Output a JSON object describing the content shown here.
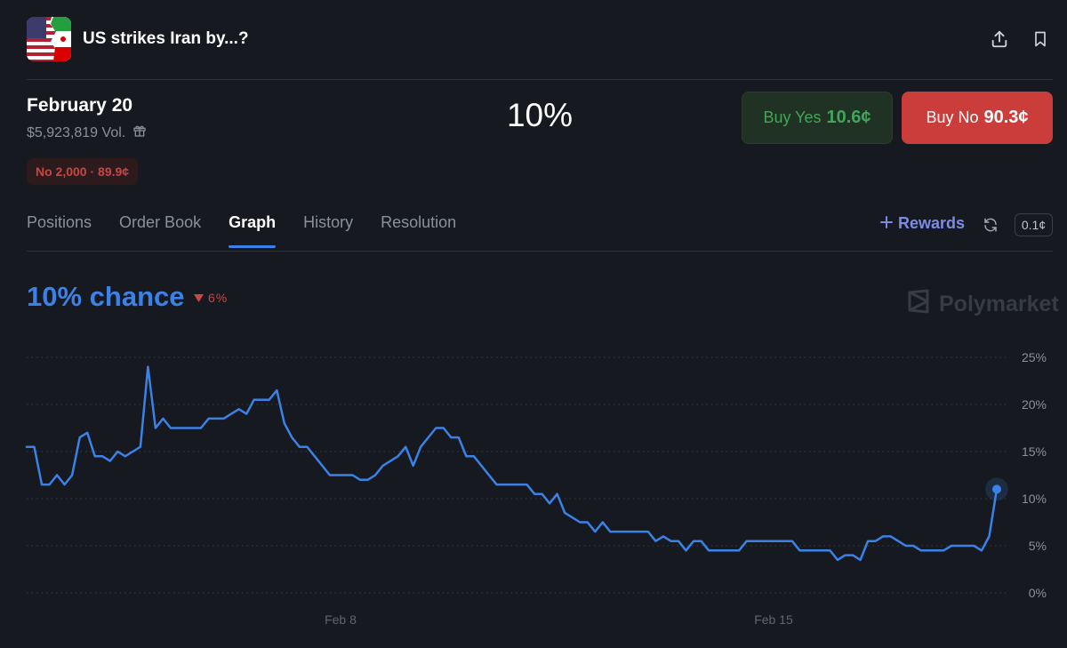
{
  "market": {
    "title": "US strikes Iran by...?",
    "date_option": "February 20",
    "volume": "$5,923,819 Vol.",
    "position_badge": "No 2,000 · 89.9¢",
    "center_percent": "10%"
  },
  "actions": {
    "buy_yes_label": "Buy Yes",
    "buy_yes_price": "10.6¢",
    "buy_no_label": "Buy No",
    "buy_no_price": "90.3¢"
  },
  "header_icons": [
    "share-icon",
    "bookmark-icon"
  ],
  "tabs": [
    "Positions",
    "Order Book",
    "Graph",
    "History",
    "Resolution"
  ],
  "active_tab": "Graph",
  "toolbar": {
    "rewards_label": "Rewards",
    "tick_size": "0.1¢"
  },
  "graph_header": {
    "chance": "10% chance",
    "change": "6%",
    "brand": "Polymarket"
  },
  "colors": {
    "background": "#16191f",
    "accent_blue": "#3b82e8",
    "yes_green": "#42a55a",
    "no_red": "#cb3d3b",
    "rewards_purple": "#7d8be8"
  },
  "chart_data": {
    "type": "line",
    "x_tick_labels": [
      "Feb 8",
      "Feb 15"
    ],
    "y_tick_labels": [
      "25%",
      "20%",
      "15%",
      "10%",
      "5%",
      "0%"
    ],
    "ylim": [
      0,
      25
    ],
    "grid": true,
    "series": [
      {
        "values": [
          15.5,
          15.5,
          11.5,
          11.5,
          12.5,
          11.5,
          12.5,
          16.5,
          17.0,
          14.5,
          14.5,
          14.0,
          15.0,
          14.5,
          15.0,
          15.5,
          24.0,
          17.5,
          18.5,
          17.5,
          17.5,
          17.5,
          17.5,
          17.5,
          18.5,
          18.5,
          18.5,
          19.0,
          19.5,
          19.0,
          20.5,
          20.5,
          20.5,
          21.5,
          18.0,
          16.5,
          15.5,
          15.5,
          14.5,
          13.5,
          12.5,
          12.5,
          12.5,
          12.5,
          12.0,
          12.0,
          12.5,
          13.5,
          14.0,
          14.5,
          15.5,
          13.5,
          15.5,
          16.5,
          17.5,
          17.5,
          16.5,
          16.5,
          14.5,
          14.5,
          13.5,
          12.5,
          11.5,
          11.5,
          11.5,
          11.5,
          11.5,
          10.5,
          10.5,
          9.5,
          10.5,
          8.5,
          8.0,
          7.5,
          7.5,
          6.5,
          7.5,
          6.5,
          6.5,
          6.5,
          6.5,
          6.5,
          6.5,
          5.5,
          6.0,
          5.5,
          5.5,
          4.5,
          5.5,
          5.5,
          4.5,
          4.5,
          4.5,
          4.5,
          4.5,
          5.5,
          5.5,
          5.5,
          5.5,
          5.5,
          5.5,
          5.5,
          4.5,
          4.5,
          4.5,
          4.5,
          4.5,
          3.5,
          4.0,
          4.0,
          3.5,
          5.5,
          5.5,
          6.0,
          6.0,
          5.5,
          5.0,
          5.0,
          4.5,
          4.5,
          4.5,
          4.5,
          5.0,
          5.0,
          5.0,
          5.0,
          4.5,
          6.0,
          11.0
        ]
      }
    ]
  }
}
